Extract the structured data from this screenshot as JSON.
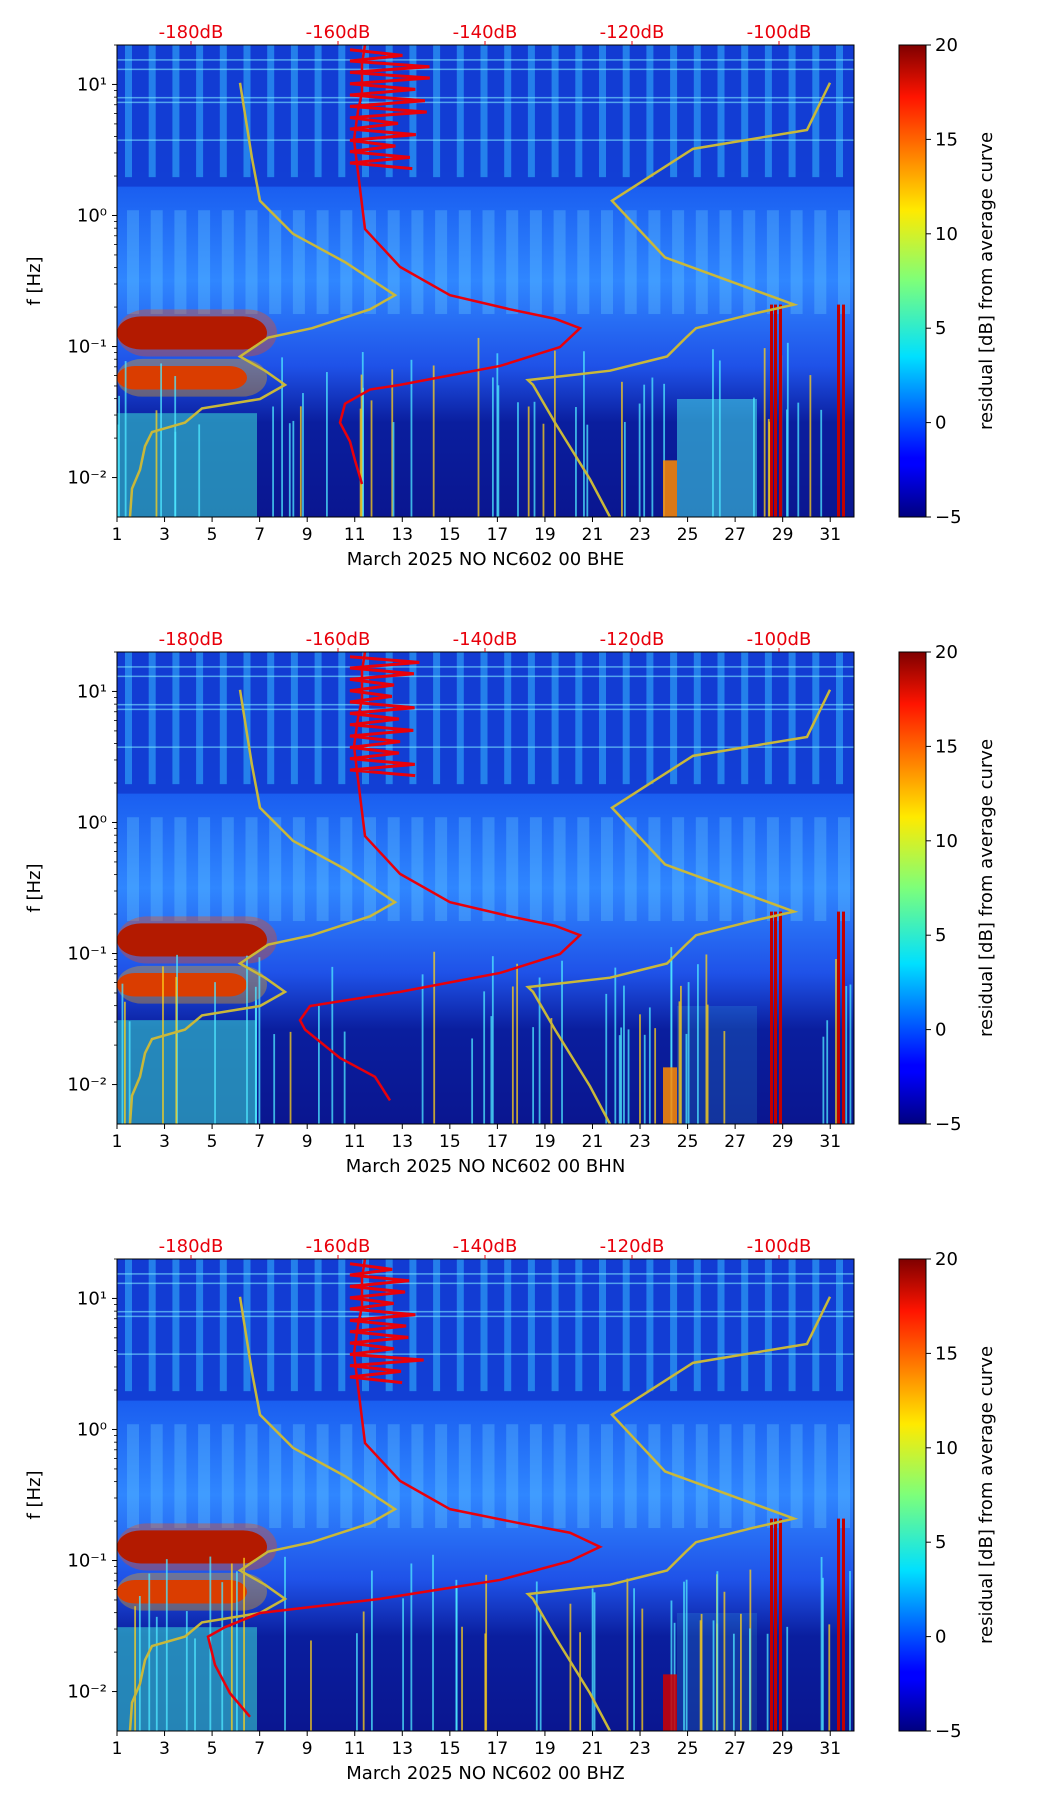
{
  "chart_data": [
    {
      "type": "heatmap",
      "title": "",
      "xlabel": "March 2025 NO NC602 00 BHE",
      "ylabel": "f [Hz]",
      "x_ticks": [
        "1",
        "3",
        "5",
        "7",
        "9",
        "11",
        "13",
        "15",
        "17",
        "19",
        "21",
        "23",
        "25",
        "27",
        "29",
        "31"
      ],
      "xlim": [
        1,
        32
      ],
      "y_ticks": [
        "10⁻²",
        "10⁻¹",
        "10⁰",
        "10¹"
      ],
      "ylim": [
        0.005,
        20
      ],
      "top_axis_ticks": [
        "-180dB",
        "-160dB",
        "-140dB",
        "-120dB",
        "-100dB"
      ],
      "top_axis_color": "#e8000b",
      "colorbar": {
        "label": "residual [dB] from average curve",
        "ticks": [
          "−5",
          "0",
          "5",
          "10",
          "15",
          "20"
        ],
        "min": -5,
        "max": 20,
        "colormap": "jet"
      },
      "series": [
        {
          "name": "noise model bounds",
          "color": "#c9b83a"
        },
        {
          "name": "average PSD curve",
          "color": "#e8000b"
        }
      ]
    },
    {
      "type": "heatmap",
      "title": "",
      "xlabel": "March 2025 NO NC602 00 BHN",
      "ylabel": "f [Hz]",
      "x_ticks": [
        "1",
        "3",
        "5",
        "7",
        "9",
        "11",
        "13",
        "15",
        "17",
        "19",
        "21",
        "23",
        "25",
        "27",
        "29",
        "31"
      ],
      "xlim": [
        1,
        32
      ],
      "y_ticks": [
        "10⁻²",
        "10⁻¹",
        "10⁰",
        "10¹"
      ],
      "ylim": [
        0.005,
        20
      ],
      "top_axis_ticks": [
        "-180dB",
        "-160dB",
        "-140dB",
        "-120dB",
        "-100dB"
      ],
      "top_axis_color": "#e8000b",
      "colorbar": {
        "label": "residual [dB] from average curve",
        "ticks": [
          "−5",
          "0",
          "5",
          "10",
          "15",
          "20"
        ],
        "min": -5,
        "max": 20,
        "colormap": "jet"
      },
      "series": [
        {
          "name": "noise model bounds",
          "color": "#c9b83a"
        },
        {
          "name": "average PSD curve",
          "color": "#e8000b"
        }
      ]
    },
    {
      "type": "heatmap",
      "title": "",
      "xlabel": "March 2025 NO NC602 00 BHZ",
      "ylabel": "f [Hz]",
      "x_ticks": [
        "1",
        "3",
        "5",
        "7",
        "9",
        "11",
        "13",
        "15",
        "17",
        "19",
        "21",
        "23",
        "25",
        "27",
        "29",
        "31"
      ],
      "xlim": [
        1,
        32
      ],
      "y_ticks": [
        "10⁻²",
        "10⁻¹",
        "10⁰",
        "10¹"
      ],
      "ylim": [
        0.005,
        20
      ],
      "top_axis_ticks": [
        "-180dB",
        "-160dB",
        "-140dB",
        "-120dB",
        "-100dB"
      ],
      "top_axis_color": "#e8000b",
      "colorbar": {
        "label": "residual [dB] from average curve",
        "ticks": [
          "−5",
          "0",
          "5",
          "10",
          "15",
          "20"
        ],
        "min": -5,
        "max": 20,
        "colormap": "jet"
      },
      "series": [
        {
          "name": "noise model bounds",
          "color": "#c9b83a"
        },
        {
          "name": "average PSD curve",
          "color": "#e8000b"
        }
      ]
    }
  ]
}
